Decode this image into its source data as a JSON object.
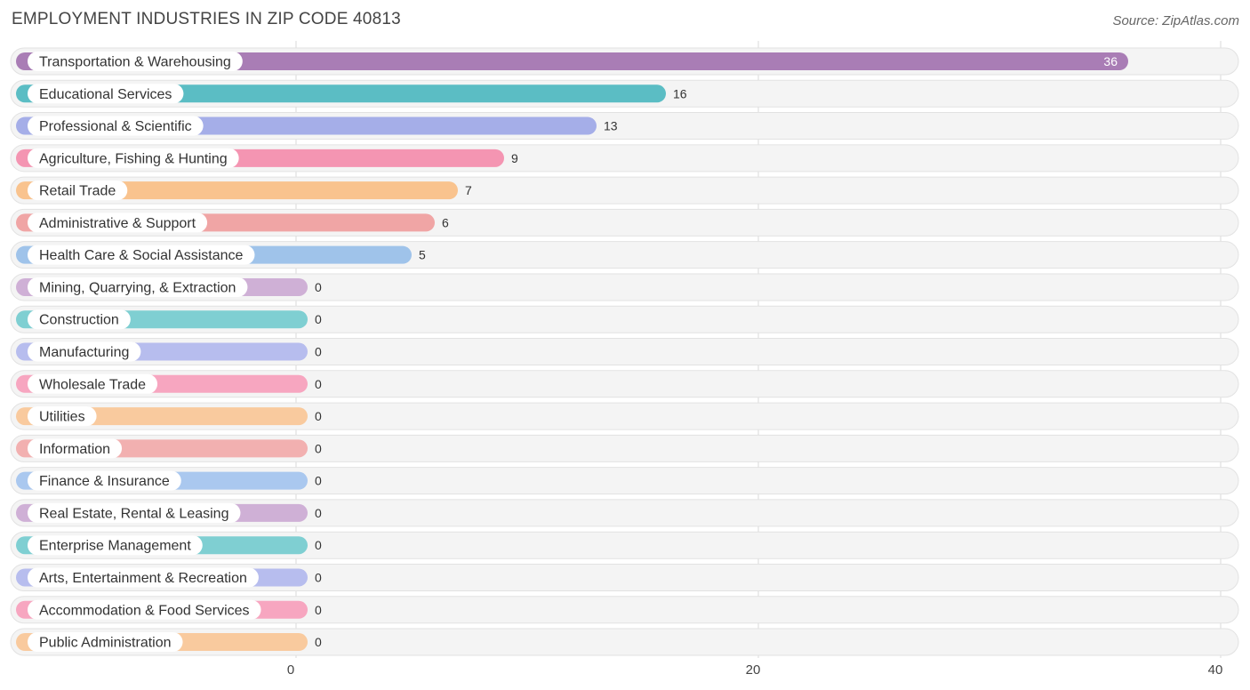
{
  "header": {
    "title": "EMPLOYMENT INDUSTRIES IN ZIP CODE 40813",
    "source": "Source: ZipAtlas.com"
  },
  "chart_data": {
    "type": "bar",
    "orientation": "horizontal",
    "title": "EMPLOYMENT INDUSTRIES IN ZIP CODE 40813",
    "xlabel": "",
    "ylabel": "",
    "xlim": [
      0,
      40
    ],
    "xticks": [
      0,
      20,
      40
    ],
    "grid": true,
    "categories": [
      "Transportation & Warehousing",
      "Educational Services",
      "Professional & Scientific",
      "Agriculture, Fishing & Hunting",
      "Retail Trade",
      "Administrative & Support",
      "Health Care & Social Assistance",
      "Mining, Quarrying, & Extraction",
      "Construction",
      "Manufacturing",
      "Wholesale Trade",
      "Utilities",
      "Information",
      "Finance & Insurance",
      "Real Estate, Rental & Leasing",
      "Enterprise Management",
      "Arts, Entertainment & Recreation",
      "Accommodation & Food Services",
      "Public Administration"
    ],
    "values": [
      36,
      16,
      13,
      9,
      7,
      6,
      5,
      0,
      0,
      0,
      0,
      0,
      0,
      0,
      0,
      0,
      0,
      0,
      0
    ],
    "colors": [
      "#a97db5",
      "#5bbdc4",
      "#a5aee8",
      "#f495b2",
      "#f9c38e",
      "#f0a5a5",
      "#9fc3ea",
      "#cfb0d6",
      "#7fcfd2",
      "#b7bdee",
      "#f7a6c0",
      "#f9ca9e",
      "#f2b0b0",
      "#aac8ef",
      "#cfb0d6",
      "#7fcfd2",
      "#b7bdee",
      "#f7a6c0",
      "#f9ca9e"
    ]
  }
}
